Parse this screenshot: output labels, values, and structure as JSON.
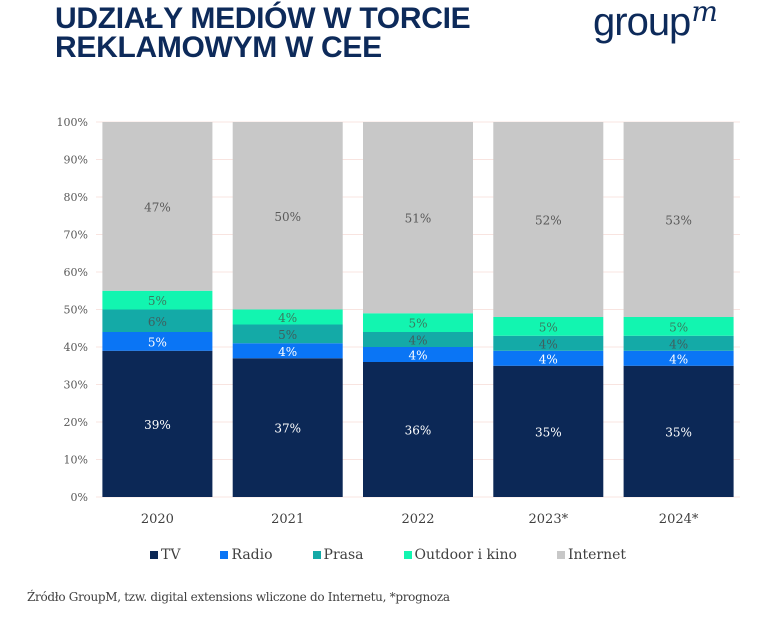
{
  "header": {
    "title_line1": "UDZIAŁY MEDIÓW W TORCIE",
    "title_line2": "REKLAMOWYM W CEE",
    "logo_text": "group",
    "logo_sup": "m"
  },
  "colors": {
    "title": "#0d2a5a",
    "TV": "#0c2856",
    "Radio": "#0a75f5",
    "Prasa": "#14aaa7",
    "Outdoor i kino": "#12f5b0",
    "Internet": "#c8c8c8",
    "grid": "#f8e4e0"
  },
  "chart_data": {
    "type": "bar",
    "stacked": true,
    "title": "UDZIAŁY MEDIÓW W TORCIE REKLAMOWYM W CEE",
    "xlabel": "",
    "ylabel": "",
    "categories": [
      "2020",
      "2021",
      "2022",
      "2023*",
      "2024*"
    ],
    "series": [
      {
        "name": "TV",
        "values": [
          39,
          37,
          36,
          35,
          35
        ],
        "labels": [
          "39%",
          "37%",
          "36%",
          "35%",
          "35%"
        ]
      },
      {
        "name": "Radio",
        "values": [
          5,
          4,
          4,
          4,
          4
        ],
        "labels": [
          "5%",
          "4%",
          "4%",
          "4%",
          "4%"
        ]
      },
      {
        "name": "Prasa",
        "values": [
          6,
          5,
          4,
          4,
          4
        ],
        "labels": [
          "6%",
          "5%",
          "4%",
          "4%",
          "4%"
        ]
      },
      {
        "name": "Outdoor i kino",
        "values": [
          5,
          4,
          5,
          5,
          5
        ],
        "labels": [
          "5%",
          "4%",
          "5%",
          "5%",
          "5%"
        ]
      },
      {
        "name": "Internet",
        "values": [
          47,
          50,
          51,
          52,
          53
        ],
        "labels": [
          "47%",
          "50%",
          "51%",
          "52%",
          "53%"
        ]
      }
    ],
    "ylim": [
      0,
      100
    ],
    "yticks": [
      "0%",
      "10%",
      "20%",
      "30%",
      "40%",
      "50%",
      "60%",
      "70%",
      "80%",
      "90%",
      "100%"
    ],
    "grid": true,
    "legend_position": "bottom"
  },
  "legend": [
    {
      "label": "TV"
    },
    {
      "label": "Radio"
    },
    {
      "label": "Prasa"
    },
    {
      "label": "Outdoor i kino"
    },
    {
      "label": "Internet"
    }
  ],
  "footer": {
    "source": "Źródło GroupM, tzw. digital extensions wliczone do Internetu, *prognoza"
  }
}
